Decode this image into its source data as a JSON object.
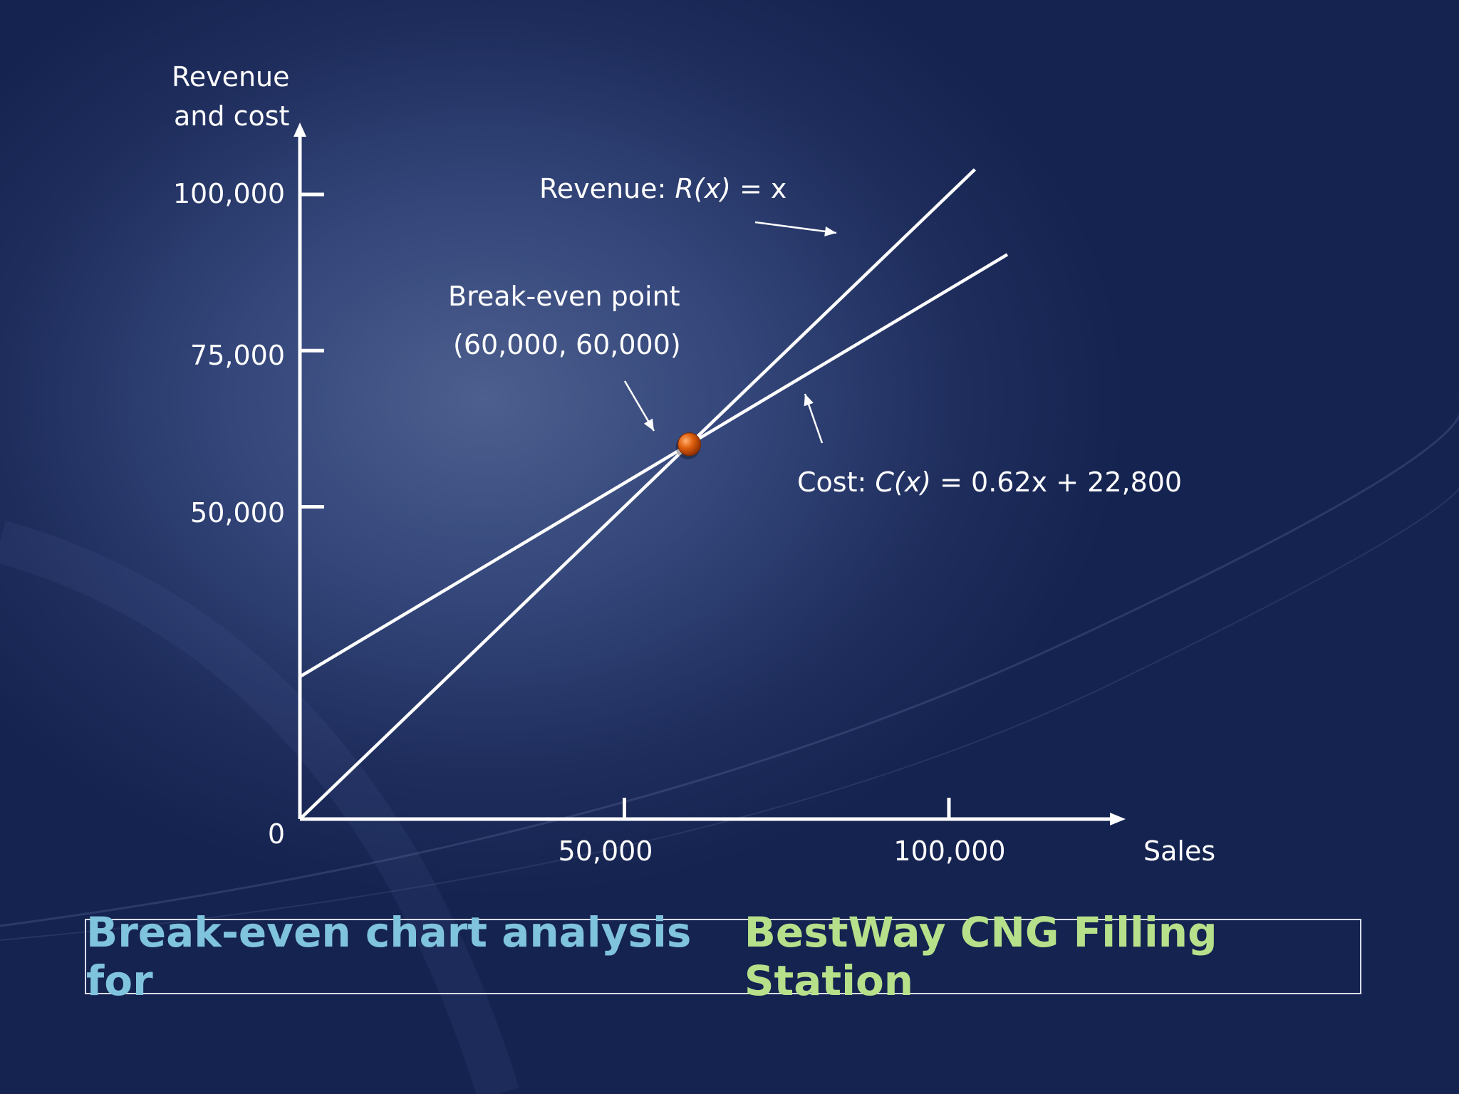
{
  "chart_data": {
    "type": "line",
    "ylabel_line1": "Revenue",
    "ylabel_line2": "and cost",
    "xlabel": "Sales",
    "xlim": [
      0,
      120000
    ],
    "ylim": [
      0,
      100000
    ],
    "y_ticks": [
      {
        "value": 0,
        "label": "0"
      },
      {
        "value": 50000,
        "label": "50,000"
      },
      {
        "value": 75000,
        "label": "75,000"
      },
      {
        "value": 100000,
        "label": "100,000"
      }
    ],
    "x_ticks": [
      {
        "value": 50000,
        "label": "50,000"
      },
      {
        "value": 100000,
        "label": "100,000"
      }
    ],
    "series": [
      {
        "name_prefix": "Revenue: ",
        "name_func": "R(x)",
        "name_suffix": " = x",
        "x": [
          0,
          104000
        ],
        "y": [
          0,
          104000
        ]
      },
      {
        "name_prefix": "Cost: ",
        "name_func": "C(x)",
        "name_suffix": " = 0.62x + 22,800",
        "x": [
          0,
          109000
        ],
        "y": [
          22800,
          90380
        ]
      }
    ],
    "break_even": {
      "label": "Break-even point",
      "coords_label": "(60,000, 60,000)",
      "x": 60000,
      "y": 60000,
      "marker_color": "#d9520c"
    },
    "grid": false
  },
  "caption": {
    "part1": "Break-even chart analysis for ",
    "part2": "BestWay CNG Filling Station"
  },
  "colors": {
    "axis": "#ffffff",
    "lines": "#ffffff",
    "caption_part1": "#7fc3dc",
    "caption_part2": "#b6e08a"
  }
}
